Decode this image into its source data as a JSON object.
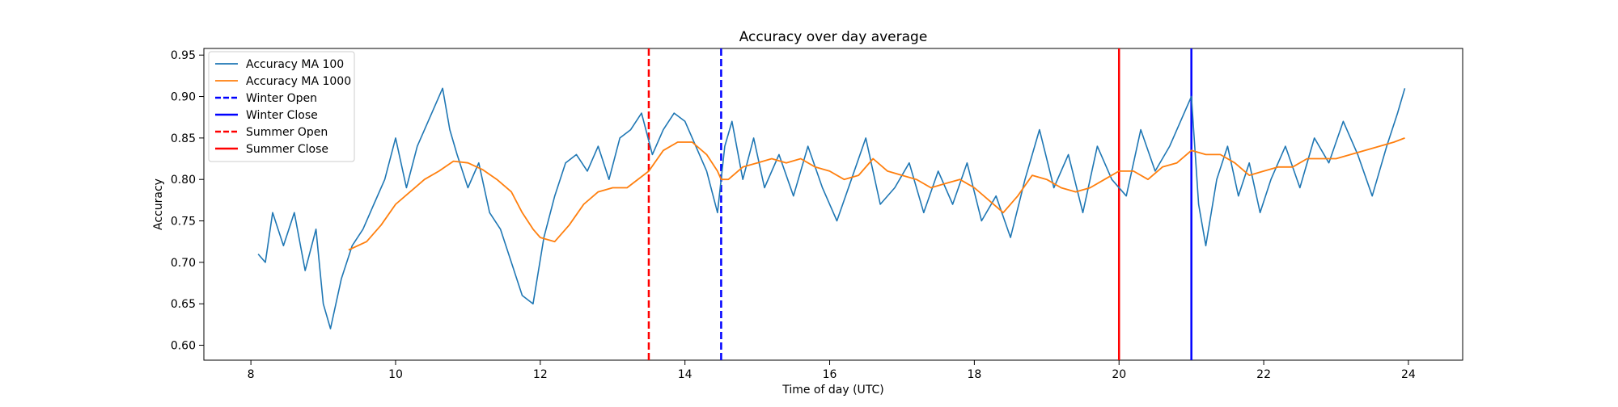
{
  "chart_data": {
    "type": "line",
    "title": "Accuracy over day average",
    "xlabel": "Time of day (UTC)",
    "ylabel": "Accuracy",
    "xlim": [
      7.35,
      24.75
    ],
    "ylim": [
      0.582,
      0.958
    ],
    "xticks": [
      8,
      10,
      12,
      14,
      16,
      18,
      20,
      22,
      24
    ],
    "yticks": [
      0.6,
      0.65,
      0.7,
      0.75,
      0.8,
      0.85,
      0.9,
      0.95
    ],
    "legend_position": "top-left",
    "series": [
      {
        "name": "Accuracy MA 100",
        "color": "#1f77b4",
        "x": [
          8.1,
          8.2,
          8.3,
          8.45,
          8.6,
          8.75,
          8.9,
          9.0,
          9.1,
          9.25,
          9.4,
          9.55,
          9.7,
          9.85,
          10.0,
          10.15,
          10.3,
          10.5,
          10.65,
          10.75,
          10.85,
          11.0,
          11.15,
          11.3,
          11.45,
          11.6,
          11.75,
          11.9,
          12.05,
          12.2,
          12.35,
          12.5,
          12.65,
          12.8,
          12.95,
          13.1,
          13.25,
          13.4,
          13.55,
          13.7,
          13.85,
          14.0,
          14.15,
          14.3,
          14.45,
          14.55,
          14.65,
          14.8,
          14.95,
          15.1,
          15.3,
          15.5,
          15.7,
          15.9,
          16.1,
          16.3,
          16.5,
          16.7,
          16.9,
          17.1,
          17.3,
          17.5,
          17.7,
          17.9,
          18.1,
          18.3,
          18.5,
          18.7,
          18.9,
          19.1,
          19.3,
          19.5,
          19.7,
          19.9,
          20.1,
          20.3,
          20.5,
          20.7,
          20.9,
          21.0,
          21.1,
          21.2,
          21.35,
          21.5,
          21.65,
          21.8,
          21.95,
          22.1,
          22.3,
          22.5,
          22.7,
          22.9,
          23.1,
          23.3,
          23.5,
          23.7,
          23.85,
          23.95
        ],
        "y": [
          0.71,
          0.7,
          0.76,
          0.72,
          0.76,
          0.69,
          0.74,
          0.65,
          0.62,
          0.68,
          0.72,
          0.74,
          0.77,
          0.8,
          0.85,
          0.79,
          0.84,
          0.88,
          0.91,
          0.86,
          0.83,
          0.79,
          0.82,
          0.76,
          0.74,
          0.7,
          0.66,
          0.65,
          0.73,
          0.78,
          0.82,
          0.83,
          0.81,
          0.84,
          0.8,
          0.85,
          0.86,
          0.88,
          0.83,
          0.86,
          0.88,
          0.87,
          0.84,
          0.81,
          0.76,
          0.84,
          0.87,
          0.8,
          0.85,
          0.79,
          0.83,
          0.78,
          0.84,
          0.79,
          0.75,
          0.8,
          0.85,
          0.77,
          0.79,
          0.82,
          0.76,
          0.81,
          0.77,
          0.82,
          0.75,
          0.78,
          0.73,
          0.8,
          0.86,
          0.79,
          0.83,
          0.76,
          0.84,
          0.8,
          0.78,
          0.86,
          0.81,
          0.84,
          0.88,
          0.9,
          0.77,
          0.72,
          0.8,
          0.84,
          0.78,
          0.82,
          0.76,
          0.8,
          0.84,
          0.79,
          0.85,
          0.82,
          0.87,
          0.83,
          0.78,
          0.84,
          0.88,
          0.91
        ]
      },
      {
        "name": "Accuracy MA 1000",
        "color": "#ff7f0e",
        "x": [
          9.35,
          9.6,
          9.8,
          10.0,
          10.2,
          10.4,
          10.6,
          10.8,
          11.0,
          11.2,
          11.4,
          11.6,
          11.75,
          11.9,
          12.0,
          12.2,
          12.4,
          12.6,
          12.8,
          13.0,
          13.2,
          13.5,
          13.7,
          13.9,
          14.1,
          14.3,
          14.45,
          14.5,
          14.6,
          14.8,
          15.0,
          15.2,
          15.4,
          15.6,
          15.8,
          16.0,
          16.2,
          16.4,
          16.6,
          16.8,
          17.0,
          17.2,
          17.4,
          17.6,
          17.8,
          18.0,
          18.2,
          18.4,
          18.6,
          18.8,
          19.0,
          19.2,
          19.4,
          19.6,
          19.8,
          20.0,
          20.2,
          20.4,
          20.6,
          20.8,
          21.0,
          21.2,
          21.4,
          21.6,
          21.8,
          22.0,
          22.2,
          22.4,
          22.6,
          22.8,
          23.0,
          23.2,
          23.4,
          23.6,
          23.8,
          23.95
        ],
        "y": [
          0.715,
          0.725,
          0.745,
          0.77,
          0.785,
          0.8,
          0.81,
          0.822,
          0.82,
          0.812,
          0.8,
          0.785,
          0.76,
          0.74,
          0.73,
          0.725,
          0.745,
          0.77,
          0.785,
          0.79,
          0.79,
          0.81,
          0.835,
          0.845,
          0.845,
          0.83,
          0.81,
          0.8,
          0.8,
          0.815,
          0.82,
          0.825,
          0.82,
          0.825,
          0.815,
          0.81,
          0.8,
          0.805,
          0.825,
          0.81,
          0.805,
          0.8,
          0.79,
          0.795,
          0.8,
          0.79,
          0.775,
          0.76,
          0.78,
          0.805,
          0.8,
          0.79,
          0.785,
          0.79,
          0.8,
          0.81,
          0.81,
          0.8,
          0.815,
          0.82,
          0.835,
          0.83,
          0.83,
          0.82,
          0.805,
          0.81,
          0.815,
          0.815,
          0.825,
          0.825,
          0.825,
          0.83,
          0.835,
          0.84,
          0.845,
          0.85
        ]
      }
    ],
    "vlines": [
      {
        "name": "Winter Open",
        "x": 14.5,
        "color": "#0000ff",
        "style": "dashed"
      },
      {
        "name": "Winter Close",
        "x": 21.0,
        "color": "#0000ff",
        "style": "solid"
      },
      {
        "name": "Summer Open",
        "x": 13.5,
        "color": "#ff0000",
        "style": "dashed"
      },
      {
        "name": "Summer Close",
        "x": 20.0,
        "color": "#ff0000",
        "style": "solid"
      }
    ]
  }
}
